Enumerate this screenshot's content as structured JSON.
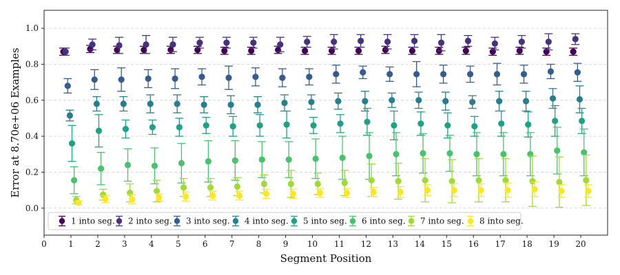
{
  "chart_data": {
    "type": "scatter",
    "subtype": "errorbar",
    "xlabel": "Segment Position",
    "ylabel": "Error at 8.70e+06 Examples",
    "xlim": [
      0,
      21
    ],
    "ylim": [
      -0.15,
      1.1
    ],
    "xticks": [
      0,
      1,
      2,
      3,
      4,
      5,
      6,
      7,
      8,
      9,
      10,
      11,
      12,
      13,
      14,
      15,
      16,
      17,
      18,
      19,
      20
    ],
    "yticks": [
      0.0,
      0.2,
      0.4,
      0.6,
      0.8,
      1.0
    ],
    "ytick_labels": [
      "0.0",
      "0.2",
      "0.4",
      "0.6",
      "0.8",
      "1.0"
    ],
    "grid": "horizontal dashed",
    "legend_placement": "lower-left",
    "legend_columns": 8,
    "series": [
      {
        "name": "1 into seg.",
        "color": "#440154",
        "x": [
          1,
          2,
          3,
          4,
          5,
          6,
          7,
          8,
          9,
          10,
          11,
          12,
          13,
          14,
          15,
          16,
          17,
          18,
          19,
          20
        ],
        "y": [
          0.87,
          0.885,
          0.88,
          0.88,
          0.88,
          0.88,
          0.875,
          0.875,
          0.88,
          0.875,
          0.875,
          0.875,
          0.88,
          0.875,
          0.875,
          0.875,
          0.87,
          0.875,
          0.87,
          0.87
        ],
        "err": [
          0.02,
          0.02,
          0.02,
          0.02,
          0.02,
          0.02,
          0.02,
          0.02,
          0.02,
          0.02,
          0.02,
          0.02,
          0.02,
          0.02,
          0.02,
          0.02,
          0.02,
          0.02,
          0.02,
          0.02
        ]
      },
      {
        "name": "2 into seg.",
        "color": "#46327e",
        "x": [
          1,
          2,
          3,
          4,
          5,
          6,
          7,
          8,
          9,
          10,
          11,
          12,
          13,
          14,
          15,
          16,
          17,
          18,
          19,
          20
        ],
        "y": [
          0.87,
          0.91,
          0.905,
          0.91,
          0.91,
          0.92,
          0.92,
          0.92,
          0.91,
          0.925,
          0.925,
          0.93,
          0.925,
          0.93,
          0.92,
          0.93,
          0.915,
          0.925,
          0.925,
          0.94
        ],
        "err": [
          0.02,
          0.03,
          0.045,
          0.05,
          0.04,
          0.03,
          0.03,
          0.03,
          0.04,
          0.03,
          0.04,
          0.035,
          0.04,
          0.035,
          0.045,
          0.03,
          0.035,
          0.035,
          0.045,
          0.03
        ]
      },
      {
        "name": "3 into seg.",
        "color": "#365c8d",
        "x": [
          1,
          2,
          3,
          4,
          5,
          6,
          7,
          8,
          9,
          10,
          11,
          12,
          13,
          14,
          15,
          16,
          17,
          18,
          19,
          20
        ],
        "y": [
          0.68,
          0.715,
          0.715,
          0.72,
          0.72,
          0.73,
          0.725,
          0.73,
          0.725,
          0.73,
          0.745,
          0.755,
          0.745,
          0.745,
          0.745,
          0.745,
          0.745,
          0.745,
          0.76,
          0.755
        ],
        "err": [
          0.04,
          0.055,
          0.065,
          0.05,
          0.055,
          0.045,
          0.065,
          0.05,
          0.05,
          0.045,
          0.05,
          0.035,
          0.04,
          0.07,
          0.05,
          0.045,
          0.06,
          0.05,
          0.04,
          0.05
        ]
      },
      {
        "name": "4 into seg.",
        "color": "#277f8e",
        "x": [
          1,
          2,
          3,
          4,
          5,
          6,
          7,
          8,
          9,
          10,
          11,
          12,
          13,
          14,
          15,
          16,
          17,
          18,
          19,
          20
        ],
        "y": [
          0.515,
          0.58,
          0.58,
          0.58,
          0.58,
          0.575,
          0.575,
          0.575,
          0.585,
          0.59,
          0.595,
          0.595,
          0.6,
          0.6,
          0.595,
          0.59,
          0.595,
          0.595,
          0.61,
          0.605
        ],
        "err": [
          0.03,
          0.04,
          0.04,
          0.05,
          0.05,
          0.045,
          0.05,
          0.045,
          0.045,
          0.04,
          0.045,
          0.055,
          0.04,
          0.045,
          0.05,
          0.035,
          0.055,
          0.055,
          0.055,
          0.075
        ]
      },
      {
        "name": "5 into seg.",
        "color": "#1fa187",
        "x": [
          1,
          2,
          3,
          4,
          5,
          6,
          7,
          8,
          9,
          10,
          11,
          12,
          13,
          14,
          15,
          16,
          17,
          18,
          19,
          20
        ],
        "y": [
          0.36,
          0.43,
          0.44,
          0.45,
          0.45,
          0.46,
          0.455,
          0.46,
          0.465,
          0.46,
          0.47,
          0.48,
          0.46,
          0.47,
          0.46,
          0.455,
          0.47,
          0.465,
          0.485,
          0.485
        ],
        "err": [
          0.1,
          0.09,
          0.05,
          0.04,
          0.05,
          0.045,
          0.055,
          0.06,
          0.075,
          0.045,
          0.05,
          0.075,
          0.08,
          0.065,
          0.07,
          0.055,
          0.07,
          0.07,
          0.085,
          0.07
        ]
      },
      {
        "name": "6 into seg.",
        "color": "#4ac16d",
        "x": [
          1,
          2,
          3,
          4,
          5,
          6,
          7,
          8,
          9,
          10,
          11,
          12,
          13,
          14,
          15,
          16,
          17,
          18,
          19,
          20
        ],
        "y": [
          0.155,
          0.22,
          0.24,
          0.235,
          0.25,
          0.26,
          0.265,
          0.27,
          0.27,
          0.275,
          0.28,
          0.29,
          0.3,
          0.305,
          0.305,
          0.3,
          0.3,
          0.3,
          0.32,
          0.31
        ],
        "err": [
          0.075,
          0.09,
          0.09,
          0.1,
          0.11,
          0.115,
          0.11,
          0.1,
          0.1,
          0.11,
          0.12,
          0.13,
          0.12,
          0.11,
          0.1,
          0.12,
          0.12,
          0.12,
          0.13,
          0.13
        ]
      },
      {
        "name": "7 into seg.",
        "color": "#a0da39",
        "x": [
          1,
          2,
          3,
          4,
          5,
          6,
          7,
          8,
          9,
          10,
          11,
          12,
          13,
          14,
          15,
          16,
          17,
          18,
          19,
          20
        ],
        "y": [
          0.045,
          0.075,
          0.085,
          0.095,
          0.115,
          0.115,
          0.12,
          0.135,
          0.135,
          0.135,
          0.14,
          0.155,
          0.15,
          0.155,
          0.15,
          0.155,
          0.155,
          0.15,
          0.145,
          0.155
        ],
        "err": [
          0.02,
          0.03,
          0.05,
          0.06,
          0.05,
          0.05,
          0.05,
          0.05,
          0.075,
          0.06,
          0.07,
          0.09,
          0.1,
          0.12,
          0.12,
          0.12,
          0.12,
          0.14,
          0.14,
          0.14
        ]
      },
      {
        "name": "8 into seg.",
        "color": "#fde725",
        "x": [
          1,
          2,
          3,
          4,
          5,
          6,
          7,
          8,
          9,
          10,
          11,
          12,
          13,
          14,
          15,
          16,
          17,
          18,
          19,
          20
        ],
        "y": [
          0.03,
          0.05,
          0.05,
          0.06,
          0.065,
          0.07,
          0.07,
          0.08,
          0.08,
          0.085,
          0.085,
          0.09,
          0.09,
          0.1,
          0.1,
          0.1,
          0.1,
          0.105,
          0.095,
          0.095
        ],
        "err": [
          0.01,
          0.02,
          0.025,
          0.02,
          0.025,
          0.025,
          0.025,
          0.025,
          0.025,
          0.025,
          0.025,
          0.025,
          0.03,
          0.03,
          0.035,
          0.035,
          0.04,
          0.04,
          0.035,
          0.035
        ]
      }
    ]
  }
}
